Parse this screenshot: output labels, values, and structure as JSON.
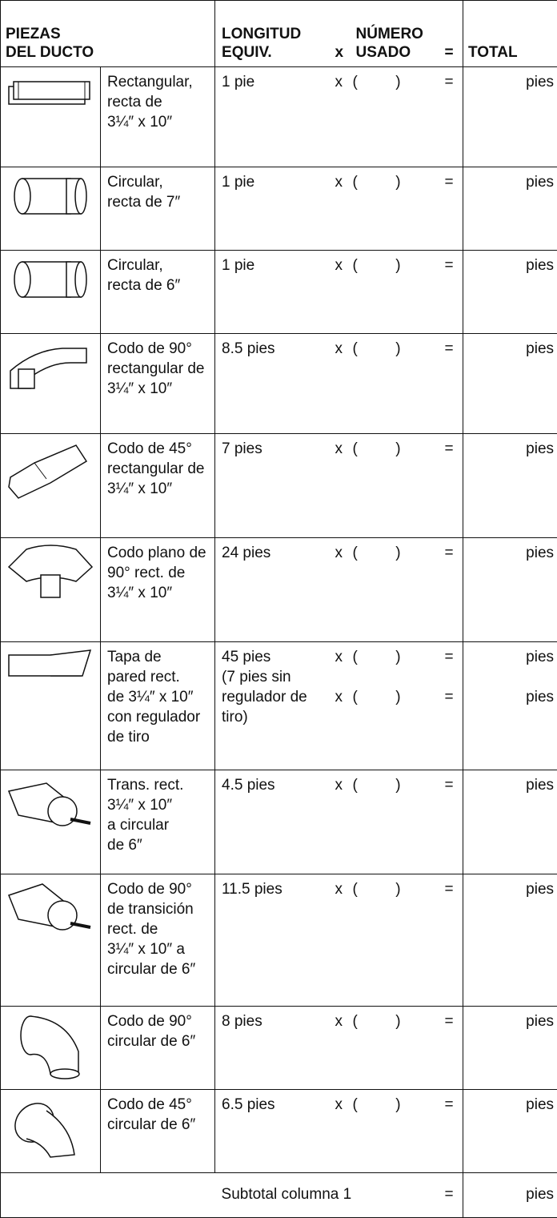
{
  "header": {
    "piezas": "PIEZAS\nDEL DUCTO",
    "longitud": "LONGITUD\nEQUIV.",
    "x": "x",
    "numero": "NÚMERO\nUSADO",
    "eq": "=",
    "total": "TOTAL"
  },
  "rows": [
    {
      "description": "Rectangular,\nrecta de\n3¼″ x 10″",
      "length": "1 pie",
      "entries": [
        {
          "x": "x",
          "open": "(",
          "close": ")",
          "eq": "=",
          "unit": "pies"
        }
      ]
    },
    {
      "description": "Circular,\nrecta de 7″",
      "length": "1 pie",
      "entries": [
        {
          "x": "x",
          "open": "(",
          "close": ")",
          "eq": "=",
          "unit": "pies"
        }
      ]
    },
    {
      "description": "Circular,\nrecta de 6″",
      "length": "1 pie",
      "entries": [
        {
          "x": "x",
          "open": "(",
          "close": ")",
          "eq": "=",
          "unit": "pies"
        }
      ]
    },
    {
      "description": "Codo de 90°\nrectangular de\n3¼″ x 10″",
      "length": "8.5 pies",
      "entries": [
        {
          "x": "x",
          "open": "(",
          "close": ")",
          "eq": "=",
          "unit": "pies"
        }
      ]
    },
    {
      "description": "Codo de 45°\nrectangular de\n3¼″ x 10″",
      "length": "7 pies",
      "entries": [
        {
          "x": "x",
          "open": "(",
          "close": ")",
          "eq": "=",
          "unit": "pies"
        }
      ]
    },
    {
      "description": "Codo plano de\n90° rect. de\n3¼″ x 10″",
      "length": "24 pies",
      "entries": [
        {
          "x": "x",
          "open": "(",
          "close": ")",
          "eq": "=",
          "unit": "pies"
        }
      ]
    },
    {
      "description": "Tapa de\npared rect.\nde 3¼″ x 10″\ncon regulador\nde tiro",
      "length": "45 pies\n(7 pies sin\nregulador de\ntiro)",
      "entries": [
        {
          "x": "x",
          "open": "(",
          "close": ")",
          "eq": "=",
          "unit": "pies"
        },
        {
          "x": "x",
          "open": "(",
          "close": ")",
          "eq": "=",
          "unit": "pies"
        }
      ]
    },
    {
      "description": "Trans. rect.\n3¼″ x 10″\na circular\nde 6″",
      "length": "4.5 pies",
      "entries": [
        {
          "x": "x",
          "open": "(",
          "close": ")",
          "eq": "=",
          "unit": "pies"
        }
      ]
    },
    {
      "description": "Codo de 90°\nde transición\nrect. de\n3¼″ x 10″ a\ncircular de 6″",
      "length": "11.5 pies",
      "entries": [
        {
          "x": "x",
          "open": "(",
          "close": ")",
          "eq": "=",
          "unit": "pies"
        }
      ]
    },
    {
      "description": "Codo de 90°\ncircular de 6″",
      "length": "8 pies",
      "entries": [
        {
          "x": "x",
          "open": "(",
          "close": ")",
          "eq": "=",
          "unit": "pies"
        }
      ]
    },
    {
      "description": "Codo de 45°\ncircular de 6″",
      "length": "6.5 pies",
      "entries": [
        {
          "x": "x",
          "open": "(",
          "close": ")",
          "eq": "=",
          "unit": "pies"
        }
      ]
    }
  ],
  "subtotal": {
    "label": "Subtotal columna 1",
    "eq": "=",
    "unit": "pies"
  }
}
